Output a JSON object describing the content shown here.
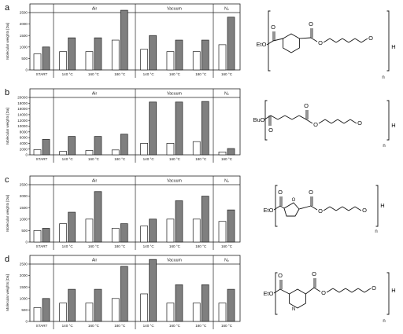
{
  "chart_data": [
    {
      "type": "bar",
      "panel_label": "a",
      "ylabel": "Molecular weights [Da]",
      "ylim": [
        0,
        2500
      ],
      "yticks": [
        0,
        500,
        1000,
        1500,
        2000,
        2500
      ],
      "groups": [
        "",
        "Air",
        "Vacuum",
        "N₂"
      ],
      "categories": [
        "START",
        "140 °C",
        "160 °C",
        "180 °C",
        "140 °C",
        "160 °C",
        "180 °C",
        "160 °C"
      ],
      "series": [
        {
          "color": "#ffffff",
          "values": [
            700,
            800,
            800,
            1300,
            900,
            800,
            800,
            1100
          ]
        },
        {
          "color": "#7f7f7f",
          "values": [
            1000,
            1400,
            1400,
            2600,
            1500,
            1300,
            1300,
            2300
          ]
        }
      ],
      "structure": {
        "end_left": "EtO",
        "end_right": "H",
        "repeat": "n"
      }
    },
    {
      "type": "bar",
      "panel_label": "b",
      "ylabel": "Molecular weights [Da]",
      "ylim": [
        0,
        20000
      ],
      "yticks": [
        0,
        2000,
        4000,
        6000,
        8000,
        10000,
        12000,
        14000,
        16000,
        18000,
        20000
      ],
      "groups": [
        "",
        "Air",
        "Vacuum",
        "N₂"
      ],
      "categories": [
        "START",
        "140 °C",
        "160 °C",
        "180 °C",
        "140 °C",
        "160 °C",
        "180 °C",
        "160 °C"
      ],
      "series": [
        {
          "color": "#ffffff",
          "values": [
            1800,
            1200,
            1500,
            1700,
            4000,
            4000,
            4600,
            1000
          ]
        },
        {
          "color": "#7f7f7f",
          "values": [
            5400,
            6400,
            6400,
            7200,
            18400,
            18400,
            18600,
            2200
          ]
        }
      ],
      "structure": {
        "end_left": "BuO",
        "end_right": "H",
        "repeat": "n"
      }
    },
    {
      "type": "bar",
      "panel_label": "c",
      "ylabel": "Molecular weights [Da]",
      "ylim": [
        0,
        2500
      ],
      "yticks": [
        0,
        500,
        1000,
        1500,
        2000,
        2500
      ],
      "groups": [
        "",
        "Air",
        "Vacuum",
        "N₂"
      ],
      "categories": [
        "START",
        "140 °C",
        "160 °C",
        "180 °C",
        "140 °C",
        "160 °C",
        "180 °C",
        "160 °C"
      ],
      "series": [
        {
          "color": "#ffffff",
          "values": [
            500,
            800,
            1000,
            600,
            700,
            1000,
            1000,
            900
          ]
        },
        {
          "color": "#7f7f7f",
          "values": [
            600,
            1300,
            2200,
            800,
            1000,
            1800,
            2000,
            1400
          ]
        }
      ],
      "structure": {
        "end_left": "EtO",
        "ring_atom": "O",
        "end_right": "H",
        "repeat": "n"
      }
    },
    {
      "type": "bar",
      "panel_label": "d",
      "ylabel": "Molecular weights [Da]",
      "ylim": [
        0,
        2500
      ],
      "yticks": [
        0,
        500,
        1000,
        1500,
        2000,
        2500
      ],
      "groups": [
        "",
        "Air",
        "Vacuum",
        "N₂"
      ],
      "categories": [
        "START",
        "140 °C",
        "160 °C",
        "180 °C",
        "140 °C",
        "160 °C",
        "180 °C",
        "160 °C"
      ],
      "series": [
        {
          "color": "#ffffff",
          "values": [
            600,
            800,
            800,
            1000,
            1200,
            800,
            800,
            800
          ]
        },
        {
          "color": "#7f7f7f",
          "values": [
            1000,
            1400,
            1400,
            2400,
            2700,
            1600,
            1600,
            1400
          ]
        }
      ],
      "structure": {
        "end_left": "EtO",
        "ring_atom": "N",
        "end_right": "H",
        "repeat": "n"
      }
    }
  ]
}
